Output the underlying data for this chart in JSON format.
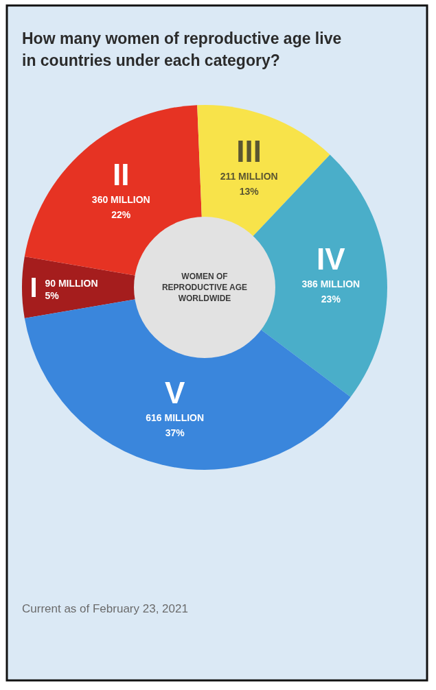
{
  "chart_data": {
    "type": "donut",
    "title": "How many women of reproductive age live in countries under each category?",
    "categories": [
      "I",
      "II",
      "III",
      "IV",
      "V"
    ],
    "values": [
      90,
      360,
      211,
      386,
      616
    ],
    "colors": [
      "#a51d1d",
      "#e63323",
      "#f8e34a",
      "#4aaec9",
      "#3a86dc"
    ],
    "value_labels": [
      "90 MILLION",
      "360 MILLION",
      "211 MILLION",
      "386 MILLION",
      "616 MILLION"
    ],
    "annotations": [
      "WOMEN OF REPRODUCTIVE AGE WORLDWIDE",
      {
        "text": "5%",
        "x": "I"
      },
      {
        "text": "22%",
        "x": "II"
      },
      {
        "text": "13%",
        "x": "III"
      },
      {
        "text": "23%",
        "x": "IV"
      },
      {
        "text": "37%",
        "x": "V"
      },
      "Current as of February 23, 2021"
    ]
  }
}
